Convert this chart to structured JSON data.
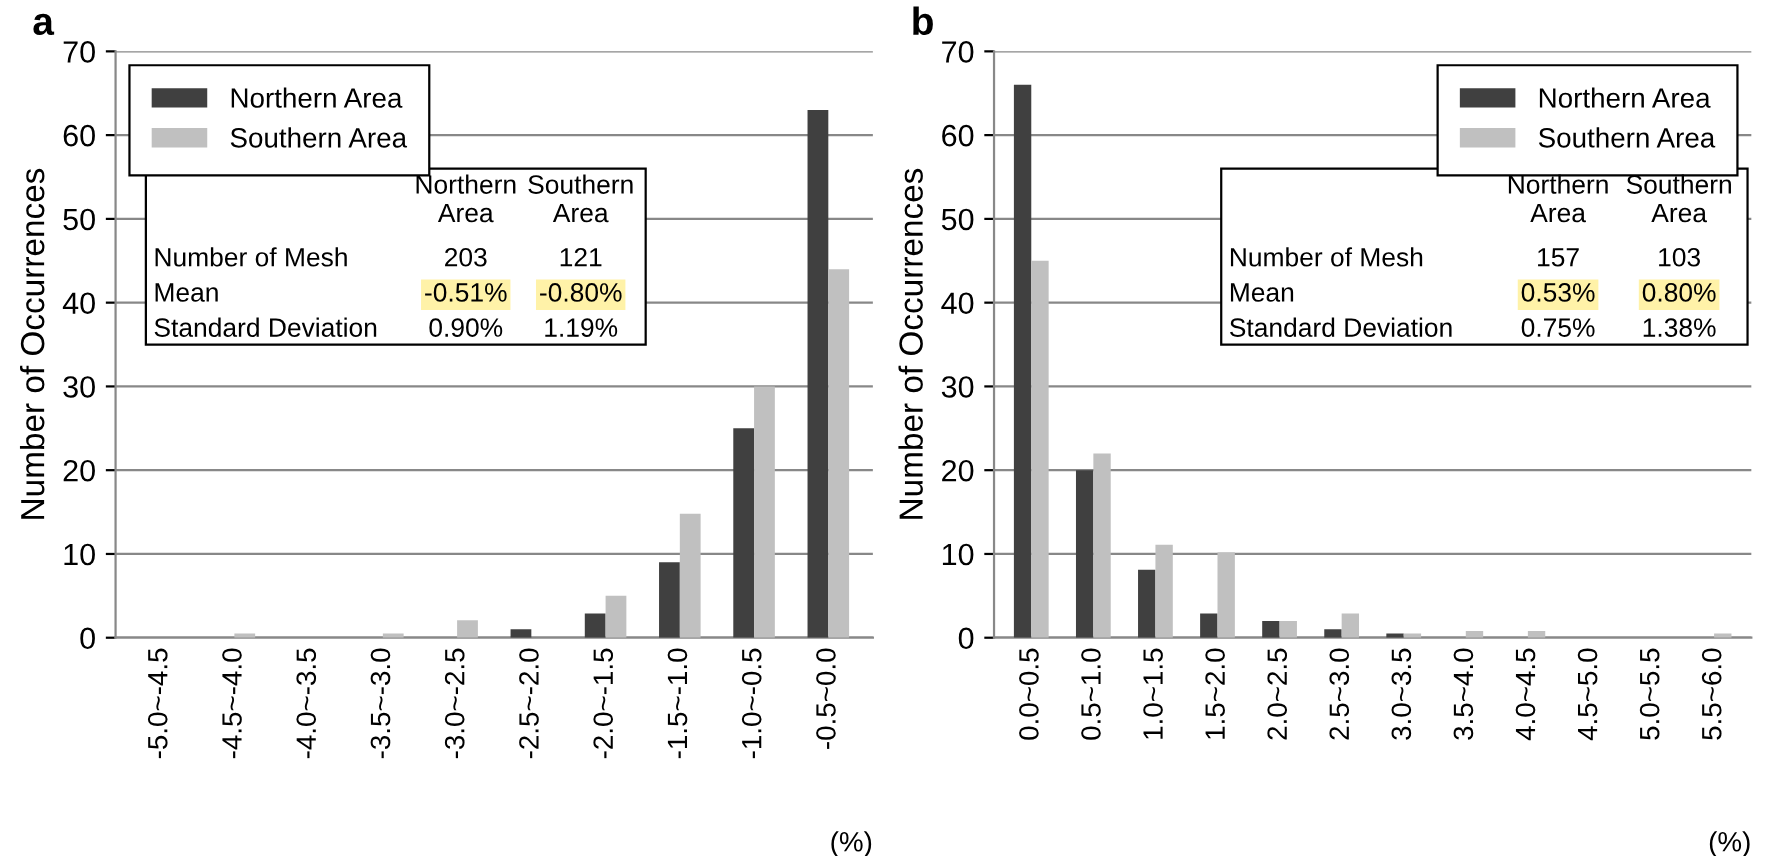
{
  "chart_data": [
    {
      "type": "bar",
      "title": "a",
      "ylabel": "Number of Occurrences",
      "categories": [
        "-5.0~-4.5",
        "-4.5~-4.0",
        "-4.0~-3.5",
        "-3.5~-3.0",
        "-3.0~-2.5",
        "-2.5~-2.0",
        "-2.0~-1.5",
        "-1.5~-1.0",
        "-1.0~-0.5",
        "-0.5~0.0"
      ],
      "series": [
        {
          "name": "Northern Area",
          "color": "#404040",
          "values": [
            0,
            0,
            0,
            0,
            0,
            1,
            2.9,
            9,
            25,
            63
          ]
        },
        {
          "name": "Southern Area",
          "color": "#c0c0c0",
          "values": [
            0,
            0.5,
            0,
            0.5,
            2.1,
            0,
            5,
            14.8,
            30,
            44
          ]
        }
      ],
      "ylim": [
        0,
        70
      ],
      "yticks": [
        0,
        10,
        20,
        30,
        40,
        50,
        60,
        70
      ],
      "grid": "y",
      "legend": "top left",
      "annotations": [
        "Northern\nArea",
        "Southern\nArea",
        "Number of Mesh",
        "203",
        "121",
        "Mean",
        "-0.51%",
        "-0.80%",
        "Standard Deviation",
        "0.90%",
        "1.19%",
        "(%)"
      ]
    },
    {
      "type": "bar",
      "title": "b",
      "ylabel": "Number of Occurrences",
      "categories": [
        "0.0~0.5",
        "0.5~1.0",
        "1.0~1.5",
        "1.5~2.0",
        "2.0~2.5",
        "2.5~3.0",
        "3.0~3.5",
        "3.5~4.0",
        "4.0~4.5",
        "4.5~5.0",
        "5.0~5.5",
        "5.5~6.0"
      ],
      "series": [
        {
          "name": "Northern Area",
          "color": "#404040",
          "values": [
            66,
            20,
            8.1,
            2.9,
            2,
            1,
            0.5,
            0,
            0,
            0,
            0,
            0
          ]
        },
        {
          "name": "Southern Area",
          "color": "#c0c0c0",
          "values": [
            45,
            22,
            11.1,
            10.2,
            2,
            2.9,
            0.5,
            0.8,
            0.8,
            0,
            0,
            0.5
          ]
        }
      ],
      "ylim": [
        0,
        70
      ],
      "yticks": [
        0,
        10,
        20,
        30,
        40,
        50,
        60,
        70
      ],
      "grid": "y",
      "legend": "top right",
      "annotations": [
        "Northern\nArea",
        "Southern\nArea",
        "Number of Mesh",
        "157",
        "103",
        "Mean",
        "0.53%",
        "0.80%",
        "Standard Deviation",
        "0.75%",
        "1.38%",
        "(%)"
      ]
    }
  ]
}
